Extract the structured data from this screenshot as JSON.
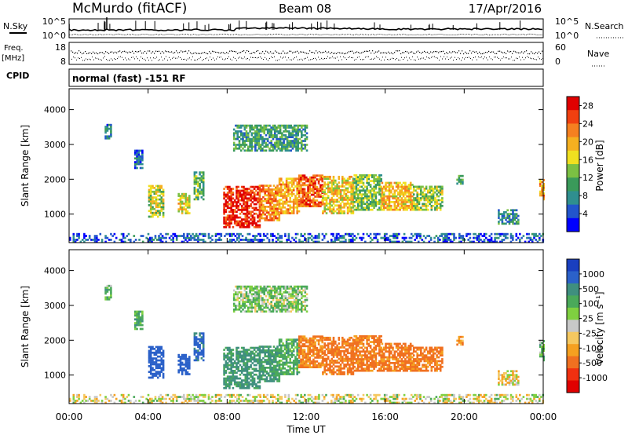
{
  "header": {
    "station": "McMurdo (fitACF)",
    "beam": "Beam 08",
    "date": "17/Apr/2016"
  },
  "status_panels": {
    "nsky_label": "N.Sky",
    "freq_label_1": "Freq.",
    "freq_label_2": "[MHz]",
    "cpid_label": "CPID",
    "nsearch_label": "N.Search",
    "nave_label": "Nave",
    "noise_ticks_left": [
      "10^5",
      "10^0"
    ],
    "noise_ticks_right": [
      "10^5",
      "10^0"
    ],
    "freq_ticks": [
      "18",
      "8"
    ],
    "nave_ticks": [
      "60",
      "0"
    ],
    "cpid_text": "normal (fast) -151 RF"
  },
  "chart_data": [
    {
      "type": "heatmap",
      "panel": "power",
      "xlabel": "Time UT",
      "ylabel": "Slant Range [km]",
      "x_ticks": [
        "00:00",
        "04:00",
        "08:00",
        "12:00",
        "16:00",
        "20:00",
        "00:00"
      ],
      "y_ticks": [
        "1000",
        "2000",
        "3000",
        "4000"
      ],
      "xlim": [
        0,
        24
      ],
      "ylim": [
        180,
        4600
      ],
      "colorbar": {
        "label": "Power [dB]",
        "ticks": [
          "4",
          "8",
          "12",
          "16",
          "20",
          "24",
          "28"
        ],
        "range": [
          0,
          30
        ],
        "colors": [
          "#0000ff",
          "#2255cc",
          "#2f8f8f",
          "#3a9a5a",
          "#7bc043",
          "#f0e020",
          "#f5b020",
          "#f58020",
          "#f04010",
          "#e00000"
        ]
      },
      "echo_regions": [
        {
          "t": [
            1.8,
            2.1
          ],
          "r": [
            3150,
            3550
          ],
          "value": 7
        },
        {
          "t": [
            3.3,
            3.7
          ],
          "r": [
            2300,
            2800
          ],
          "value": 6
        },
        {
          "t": [
            4.0,
            4.8
          ],
          "r": [
            900,
            1800
          ],
          "value": 15
        },
        {
          "t": [
            5.5,
            6.1
          ],
          "r": [
            1000,
            1600
          ],
          "value": 17
        },
        {
          "t": [
            6.3,
            6.8
          ],
          "r": [
            1400,
            2200
          ],
          "value": 12
        },
        {
          "t": [
            7.8,
            9.6
          ],
          "r": [
            600,
            1800
          ],
          "value": 27
        },
        {
          "t": [
            9.6,
            10.6
          ],
          "r": [
            800,
            1800
          ],
          "value": 22
        },
        {
          "t": [
            10.6,
            11.6
          ],
          "r": [
            1000,
            2000
          ],
          "value": 20
        },
        {
          "t": [
            11.6,
            12.8
          ],
          "r": [
            1200,
            2100
          ],
          "value": 24
        },
        {
          "t": [
            12.8,
            14.4
          ],
          "r": [
            1000,
            2100
          ],
          "value": 18
        },
        {
          "t": [
            14.4,
            15.8
          ],
          "r": [
            1100,
            2100
          ],
          "value": 13
        },
        {
          "t": [
            15.8,
            17.4
          ],
          "r": [
            1100,
            1900
          ],
          "value": 19
        },
        {
          "t": [
            17.4,
            18.9
          ],
          "r": [
            1100,
            1800
          ],
          "value": 14
        },
        {
          "t": [
            19.6,
            19.9
          ],
          "r": [
            1850,
            2100
          ],
          "value": 11
        },
        {
          "t": [
            21.7,
            22.7
          ],
          "r": [
            700,
            1100
          ],
          "value": 8
        },
        {
          "t": [
            23.8,
            24.0
          ],
          "r": [
            1400,
            2000
          ],
          "value": 21
        },
        {
          "t": [
            8.3,
            12.0
          ],
          "r": [
            2800,
            3550
          ],
          "value": 10
        },
        {
          "t": [
            0.0,
            24.0
          ],
          "r": [
            180,
            420
          ],
          "value": 5
        }
      ]
    },
    {
      "type": "heatmap",
      "panel": "velocity",
      "xlabel": "Time UT",
      "ylabel": "Slant Range [km]",
      "x_ticks": [
        "00:00",
        "04:00",
        "08:00",
        "12:00",
        "16:00",
        "20:00",
        "00:00"
      ],
      "y_ticks": [
        "1000",
        "2000",
        "3000",
        "4000"
      ],
      "xlim": [
        0,
        24
      ],
      "ylim": [
        180,
        4600
      ],
      "colorbar": {
        "label": "Velocity [m s⁻¹]",
        "ticks": [
          "1000",
          "500",
          "100",
          "25",
          "-25",
          "-100",
          "-500",
          "-1000"
        ],
        "colors": [
          "#1a3fbf",
          "#2b61c9",
          "#3f8f7f",
          "#4aa95a",
          "#7fd040",
          "#c8c8c8",
          "#f5c860",
          "#f5a020",
          "#f07020",
          "#f03010",
          "#e00000"
        ]
      },
      "echo_regions": [
        {
          "t": [
            1.8,
            2.1
          ],
          "r": [
            3150,
            3550
          ],
          "value": 120
        },
        {
          "t": [
            3.3,
            3.7
          ],
          "r": [
            2300,
            2800
          ],
          "value": 200
        },
        {
          "t": [
            4.0,
            4.8
          ],
          "r": [
            900,
            1800
          ],
          "value": 700
        },
        {
          "t": [
            5.5,
            6.1
          ],
          "r": [
            1000,
            1600
          ],
          "value": 650
        },
        {
          "t": [
            6.3,
            6.8
          ],
          "r": [
            1400,
            2200
          ],
          "value": 600
        },
        {
          "t": [
            7.8,
            9.6
          ],
          "r": [
            600,
            1800
          ],
          "value": 300
        },
        {
          "t": [
            9.6,
            10.6
          ],
          "r": [
            800,
            1800
          ],
          "value": 250
        },
        {
          "t": [
            10.6,
            11.6
          ],
          "r": [
            1000,
            2000
          ],
          "value": 180
        },
        {
          "t": [
            11.6,
            12.8
          ],
          "r": [
            1200,
            2100
          ],
          "value": -300
        },
        {
          "t": [
            12.8,
            14.4
          ],
          "r": [
            1000,
            2100
          ],
          "value": -350
        },
        {
          "t": [
            14.4,
            15.8
          ],
          "r": [
            1100,
            2100
          ],
          "value": -320
        },
        {
          "t": [
            15.8,
            17.4
          ],
          "r": [
            1100,
            1900
          ],
          "value": -330
        },
        {
          "t": [
            17.4,
            18.9
          ],
          "r": [
            1100,
            1800
          ],
          "value": -340
        },
        {
          "t": [
            19.6,
            19.9
          ],
          "r": [
            1850,
            2100
          ],
          "value": -200
        },
        {
          "t": [
            21.7,
            22.7
          ],
          "r": [
            700,
            1100
          ],
          "value": -60
        },
        {
          "t": [
            23.8,
            24.0
          ],
          "r": [
            1400,
            2000
          ],
          "value": 150
        },
        {
          "t": [
            8.3,
            12.0
          ],
          "r": [
            2800,
            3550
          ],
          "value": 90
        },
        {
          "t": [
            0.0,
            24.0
          ],
          "r": [
            180,
            420
          ],
          "value": -10
        }
      ]
    }
  ]
}
